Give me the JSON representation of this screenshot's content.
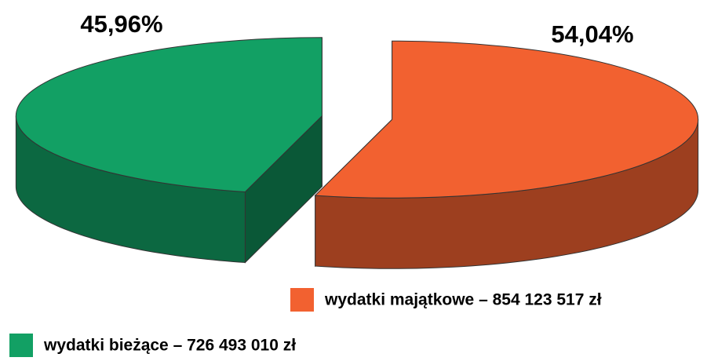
{
  "chart_data": {
    "type": "pie",
    "categories": [
      "wydatki majątkowe – 854 123 517 zł",
      "wydatki bieżące – 726 493 010 zł"
    ],
    "values": [
      54.04,
      45.96
    ],
    "value_labels": [
      "54,04%",
      "45,96%"
    ],
    "colors": [
      "#f26130",
      "#12a064"
    ]
  }
}
